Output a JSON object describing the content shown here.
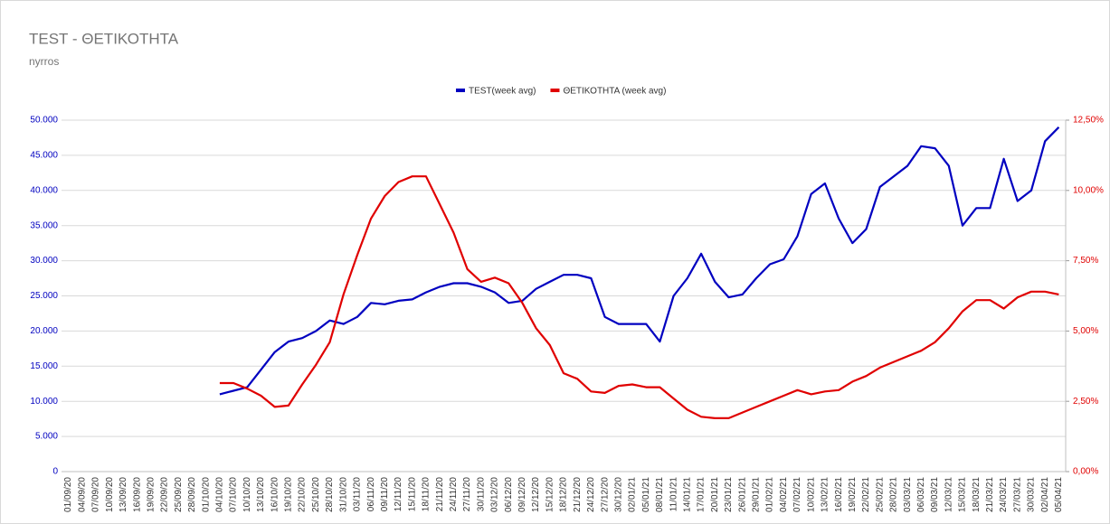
{
  "chart_data": {
    "type": "line",
    "title": "TEST - ΘΕΤΙΚΟΤΗΤΑ",
    "subtitle": "nyrros",
    "categories": [
      "01/09/20",
      "04/09/20",
      "07/09/20",
      "10/09/20",
      "13/09/20",
      "16/09/20",
      "19/09/20",
      "22/09/20",
      "25/09/20",
      "28/09/20",
      "01/10/20",
      "04/10/20",
      "07/10/20",
      "10/10/20",
      "13/10/20",
      "16/10/20",
      "19/10/20",
      "22/10/20",
      "25/10/20",
      "28/10/20",
      "31/10/20",
      "03/11/20",
      "06/11/20",
      "09/11/20",
      "12/11/20",
      "15/11/20",
      "18/11/20",
      "21/11/20",
      "24/11/20",
      "27/11/20",
      "30/11/20",
      "03/12/20",
      "06/12/20",
      "09/12/20",
      "12/12/20",
      "15/12/20",
      "18/12/20",
      "21/12/20",
      "24/12/20",
      "27/12/20",
      "30/12/20",
      "02/01/21",
      "05/01/21",
      "08/01/21",
      "11/01/21",
      "14/01/21",
      "17/01/21",
      "20/01/21",
      "23/01/21",
      "26/01/21",
      "29/01/21",
      "01/02/21",
      "04/02/21",
      "07/02/21",
      "10/02/21",
      "13/02/21",
      "16/02/21",
      "19/02/21",
      "22/02/21",
      "25/02/21",
      "28/02/21",
      "03/03/21",
      "06/03/21",
      "09/03/21",
      "12/03/21",
      "15/03/21",
      "18/03/21",
      "21/03/21",
      "24/03/21",
      "27/03/21",
      "30/03/21",
      "02/04/21",
      "05/04/21"
    ],
    "series": [
      {
        "name": "TEST(week avg)",
        "color": "#0000c0",
        "values": [
          null,
          null,
          null,
          null,
          null,
          null,
          null,
          null,
          null,
          null,
          null,
          11000,
          11500,
          12000,
          14500,
          17000,
          18500,
          19000,
          20000,
          21500,
          21000,
          22000,
          24000,
          23800,
          24300,
          24500,
          25500,
          26300,
          26800,
          26800,
          26300,
          25500,
          24000,
          24300,
          26000,
          27000,
          28000,
          28000,
          27500,
          22000,
          21000,
          21000,
          21000,
          18500,
          25000,
          27500,
          31000,
          27000,
          24800,
          25200,
          27500,
          29500,
          30200,
          33500,
          39500,
          41000,
          36000,
          32500,
          34500,
          40500,
          42000,
          43500,
          46300,
          46000,
          43500,
          35000,
          37500,
          37500,
          44500,
          38500,
          40000,
          47000,
          49000
        ]
      },
      {
        "name": "ΘΕΤΙΚΟΤΗΤΑ (week avg)",
        "color": "#e00000",
        "axis": "y2",
        "values": [
          null,
          null,
          null,
          null,
          null,
          null,
          null,
          null,
          null,
          null,
          null,
          3.15,
          3.15,
          2.95,
          2.7,
          2.3,
          2.35,
          3.1,
          3.8,
          4.6,
          6.3,
          7.7,
          9.0,
          9.8,
          10.3,
          10.5,
          10.5,
          9.5,
          8.5,
          7.2,
          6.75,
          6.9,
          6.7,
          6.0,
          5.1,
          4.5,
          3.5,
          3.3,
          2.85,
          2.8,
          3.05,
          3.1,
          3.0,
          3.0,
          2.6,
          2.2,
          1.95,
          1.9,
          1.9,
          2.1,
          2.3,
          2.5,
          2.7,
          2.9,
          2.75,
          2.85,
          2.9,
          3.2,
          3.4,
          3.7,
          3.9,
          4.1,
          4.3,
          4.6,
          5.1,
          5.7,
          6.1,
          6.1,
          5.8,
          6.2,
          6.4,
          6.4,
          6.3
        ]
      }
    ],
    "ylim": [
      0,
      50000
    ],
    "yticks": [
      0,
      {
        "value": 5000,
        "label": "5.000"
      },
      {
        "value": 10000,
        "label": "10.000"
      },
      {
        "value": 15000,
        "label": "15.000"
      },
      {
        "value": 20000,
        "label": "20.000"
      },
      {
        "value": 25000,
        "label": "25.000"
      },
      {
        "value": 30000,
        "label": "30.000"
      },
      {
        "value": 35000,
        "label": "35.000"
      },
      {
        "value": 40000,
        "label": "40.000"
      },
      {
        "value": 45000,
        "label": "45.000"
      },
      {
        "value": 50000,
        "label": "50.000"
      }
    ],
    "y2lim": [
      0,
      12.5
    ],
    "y2ticks": [
      {
        "value": 0,
        "label": "0,00%"
      },
      {
        "value": 2.5,
        "label": "2,50%"
      },
      {
        "value": 5,
        "label": "5,00%"
      },
      {
        "value": 7.5,
        "label": "7,50%"
      },
      {
        "value": 10,
        "label": "10,00%"
      },
      {
        "value": 12.5,
        "label": "12,50%"
      }
    ],
    "grid": true,
    "legend": "top"
  }
}
